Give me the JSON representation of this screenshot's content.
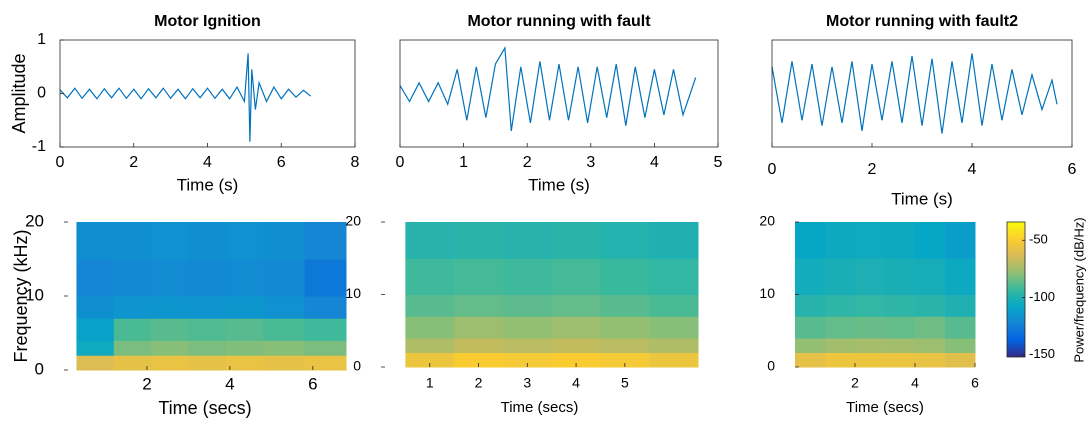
{
  "chart_data": [
    {
      "type": "line",
      "title": "Motor Ignition",
      "xlabel": "Time (s)",
      "ylabel": "Amplitude",
      "color": "#0072bd",
      "xlim": [
        0,
        8
      ],
      "xticks": [
        0,
        2,
        4,
        6,
        8
      ],
      "ylim": [
        -1,
        1
      ],
      "yticks": [
        -1,
        0,
        1
      ],
      "x": [
        0,
        0.2,
        0.4,
        0.6,
        0.8,
        1,
        1.2,
        1.4,
        1.6,
        1.8,
        2,
        2.2,
        2.4,
        2.6,
        2.8,
        3,
        3.2,
        3.4,
        3.6,
        3.8,
        4,
        4.2,
        4.4,
        4.6,
        4.8,
        5,
        5.1,
        5.15,
        5.2,
        5.3,
        5.4,
        5.6,
        5.8,
        6,
        6.2,
        6.4,
        6.6,
        6.8
      ],
      "values": [
        0.07,
        -0.08,
        0.1,
        -0.09,
        0.08,
        -0.1,
        0.09,
        -0.08,
        0.1,
        -0.09,
        0.08,
        -0.1,
        0.09,
        -0.08,
        0.1,
        -0.09,
        0.08,
        -0.1,
        0.09,
        -0.08,
        0.1,
        -0.09,
        0.08,
        -0.1,
        0.12,
        -0.15,
        0.75,
        -0.9,
        0.45,
        -0.3,
        0.2,
        -0.15,
        0.12,
        -0.1,
        0.08,
        -0.07,
        0.06,
        -0.05
      ]
    },
    {
      "type": "line",
      "title": "Motor running with fault",
      "xlabel": "Time (s)",
      "color": "#0072bd",
      "xlim": [
        0,
        5
      ],
      "xticks": [
        0,
        1,
        2,
        3,
        4,
        5
      ],
      "ylim": [
        -1,
        1
      ],
      "x": [
        0,
        0.15,
        0.3,
        0.45,
        0.6,
        0.75,
        0.9,
        1.05,
        1.2,
        1.35,
        1.5,
        1.65,
        1.75,
        1.9,
        2.05,
        2.2,
        2.35,
        2.5,
        2.65,
        2.8,
        2.95,
        3.1,
        3.25,
        3.4,
        3.55,
        3.7,
        3.85,
        4,
        4.15,
        4.3,
        4.45,
        4.65
      ],
      "values": [
        0.15,
        -0.15,
        0.2,
        -0.15,
        0.2,
        -0.2,
        0.45,
        -0.5,
        0.5,
        -0.45,
        0.55,
        0.85,
        -0.7,
        0.5,
        -0.55,
        0.6,
        -0.5,
        0.55,
        -0.5,
        0.5,
        -0.55,
        0.5,
        -0.45,
        0.55,
        -0.6,
        0.5,
        -0.45,
        0.45,
        -0.4,
        0.45,
        -0.4,
        0.3
      ]
    },
    {
      "type": "line",
      "title": "Motor running with fault2",
      "xlabel": "Time (s)",
      "color": "#0072bd",
      "xlim": [
        0,
        6
      ],
      "xticks": [
        0,
        2,
        4,
        6
      ],
      "ylim": [
        -1,
        1
      ],
      "x": [
        0,
        0.2,
        0.4,
        0.6,
        0.8,
        1,
        1.2,
        1.4,
        1.6,
        1.8,
        2,
        2.2,
        2.4,
        2.6,
        2.8,
        3,
        3.2,
        3.4,
        3.6,
        3.8,
        4,
        4.2,
        4.4,
        4.6,
        4.8,
        5,
        5.2,
        5.4,
        5.6,
        5.7
      ],
      "values": [
        0.5,
        -0.55,
        0.6,
        -0.5,
        0.55,
        -0.6,
        0.5,
        -0.55,
        0.6,
        -0.7,
        0.55,
        -0.5,
        0.6,
        -0.55,
        0.7,
        -0.6,
        0.65,
        -0.75,
        0.6,
        -0.55,
        0.75,
        -0.6,
        0.55,
        -0.5,
        0.45,
        -0.4,
        0.35,
        -0.3,
        0.25,
        -0.2
      ]
    },
    {
      "type": "heatmap",
      "xlabel": "Time (secs)",
      "ylabel": "Frequency (kHz)",
      "xlim": [
        0,
        6.8
      ],
      "xticks": [
        2,
        4,
        6
      ],
      "ylim": [
        0,
        20
      ],
      "yticks": [
        0,
        10,
        20
      ],
      "x_bins": [
        0.3,
        1.2,
        2.1,
        3,
        3.9,
        4.8,
        5.8,
        6.8
      ],
      "y_bins": [
        0,
        2,
        4,
        7,
        10,
        15,
        20
      ],
      "values": [
        [
          -62,
          -58,
          -57,
          -58,
          -57,
          -58,
          -57
        ],
        [
          -105,
          -82,
          -80,
          -82,
          -81,
          -80,
          -82
        ],
        [
          -110,
          -90,
          -88,
          -89,
          -88,
          -90,
          -92
        ],
        [
          -118,
          -116,
          -115,
          -116,
          -115,
          -117,
          -122
        ],
        [
          -122,
          -121,
          -120,
          -121,
          -120,
          -121,
          -128
        ],
        [
          -118,
          -118,
          -117,
          -118,
          -117,
          -118,
          -122
        ]
      ]
    },
    {
      "type": "heatmap",
      "xlabel": "Time (secs)",
      "xlim": [
        0,
        6.5
      ],
      "xticks": [
        1,
        2,
        3,
        4,
        5
      ],
      "ylim": [
        0,
        20
      ],
      "yticks": [
        0,
        10,
        20
      ],
      "x_bins": [
        0.5,
        1.5,
        2.5,
        3.5,
        4.5,
        5.5,
        6.5
      ],
      "y_bins": [
        0,
        2,
        4,
        7,
        10,
        15,
        20
      ],
      "values": [
        [
          -55,
          -50,
          -52,
          -50,
          -52,
          -55
        ],
        [
          -72,
          -68,
          -70,
          -68,
          -70,
          -72
        ],
        [
          -80,
          -76,
          -78,
          -76,
          -78,
          -80
        ],
        [
          -88,
          -86,
          -87,
          -86,
          -88,
          -90
        ],
        [
          -92,
          -91,
          -92,
          -91,
          -93,
          -95
        ],
        [
          -98,
          -97,
          -98,
          -97,
          -99,
          -100
        ]
      ]
    },
    {
      "type": "heatmap",
      "xlabel": "Time (secs)",
      "xlim": [
        0,
        6
      ],
      "xticks": [
        2,
        4,
        6
      ],
      "ylim": [
        0,
        20
      ],
      "yticks": [
        0,
        10,
        20
      ],
      "x_bins": [
        0,
        1,
        2,
        3,
        4,
        5,
        6
      ],
      "y_bins": [
        0,
        2,
        4,
        7,
        10,
        15,
        20
      ],
      "values": [
        [
          -58,
          -55,
          -55,
          -56,
          -57,
          -60
        ],
        [
          -78,
          -75,
          -74,
          -75,
          -76,
          -80
        ],
        [
          -88,
          -86,
          -85,
          -86,
          -84,
          -88
        ],
        [
          -98,
          -96,
          -95,
          -96,
          -97,
          -100
        ],
        [
          -104,
          -102,
          -101,
          -102,
          -103,
          -106
        ],
        [
          -108,
          -106,
          -105,
          -106,
          -108,
          -112
        ]
      ]
    }
  ],
  "colorbar": {
    "label": "Power/frequency (dB/Hz)",
    "clim": [
      -152,
      -34
    ],
    "ticks": [
      -150,
      -100,
      -50
    ],
    "colors": [
      "#352a87",
      "#0363e1",
      "#1485d4",
      "#06a7c6",
      "#38b99e",
      "#92bf73",
      "#d9ba56",
      "#fcce2e",
      "#f9fb0e"
    ]
  }
}
